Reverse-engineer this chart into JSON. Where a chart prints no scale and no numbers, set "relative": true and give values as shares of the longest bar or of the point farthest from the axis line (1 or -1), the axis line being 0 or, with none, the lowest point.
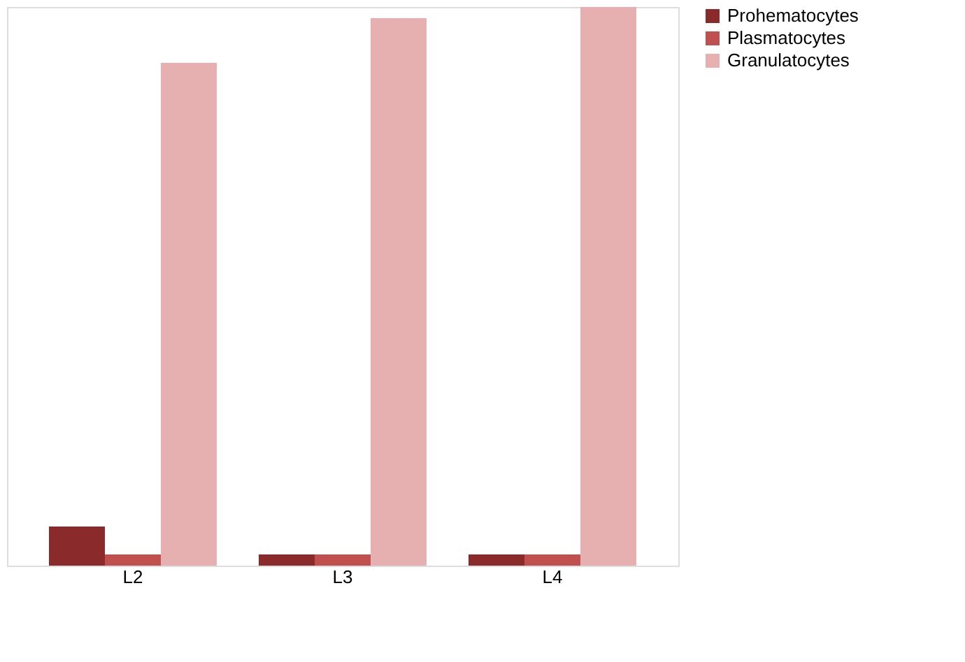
{
  "chart_data": {
    "type": "bar",
    "relative": true,
    "categories": [
      "L2",
      "L3",
      "L4"
    ],
    "series": [
      {
        "name": "Prohematocytes",
        "color": "#8b2a2a",
        "values": [
          0.07,
          0.02,
          0.02
        ]
      },
      {
        "name": "Plasmatocytes",
        "color": "#c0504d",
        "values": [
          0.02,
          0.02,
          0.02
        ]
      },
      {
        "name": "Granulatocytes",
        "color": "#e6b0b0",
        "values": [
          0.9,
          0.98,
          1.0
        ]
      }
    ],
    "legend": "right",
    "grid": false
  }
}
